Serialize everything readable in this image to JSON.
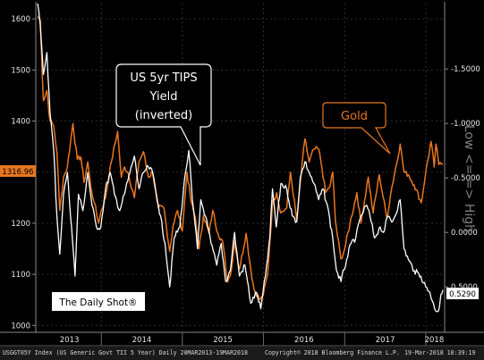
{
  "chart_data": {
    "type": "line",
    "x_range": [
      "2013-03-20",
      "2018-03-19"
    ],
    "left_axis": {
      "ticks": [
        1000,
        1100,
        1200,
        1300,
        1400,
        1500,
        1600
      ],
      "range": [
        990,
        1630
      ]
    },
    "right_axis": {
      "ticks": [
        "-1.5000",
        "-1.0000",
        "-0.5000",
        "0.0000",
        "0.5000"
      ],
      "tick_values": [
        -1.5,
        -1.0,
        -0.5,
        0.0,
        0.5
      ],
      "range": [
        0.9,
        -2.1
      ],
      "label": "Low <= => High"
    },
    "x_tick_labels": [
      "2013",
      "2014",
      "2015",
      "2016",
      "2017",
      "2018"
    ],
    "series": [
      {
        "name": "Gold",
        "color": "#e8761e",
        "axis": "left",
        "points": [
          [
            "2013-03-20",
            1605
          ],
          [
            "2013-04-01",
            1598
          ],
          [
            "2013-04-15",
            1440
          ],
          [
            "2013-05-01",
            1460
          ],
          [
            "2013-05-15",
            1400
          ],
          [
            "2013-06-01",
            1390
          ],
          [
            "2013-06-15",
            1340
          ],
          [
            "2013-06-28",
            1225
          ],
          [
            "2013-07-15",
            1290
          ],
          [
            "2013-08-01",
            1310
          ],
          [
            "2013-08-26",
            1395
          ],
          [
            "2013-09-15",
            1325
          ],
          [
            "2013-10-01",
            1330
          ],
          [
            "2013-10-15",
            1280
          ],
          [
            "2013-11-01",
            1320
          ],
          [
            "2013-11-15",
            1270
          ],
          [
            "2013-12-01",
            1240
          ],
          [
            "2013-12-20",
            1200
          ],
          [
            "2014-01-01",
            1225
          ],
          [
            "2014-01-20",
            1250
          ],
          [
            "2014-02-15",
            1320
          ],
          [
            "2014-03-15",
            1380
          ],
          [
            "2014-04-01",
            1290
          ],
          [
            "2014-04-15",
            1310
          ],
          [
            "2014-05-01",
            1300
          ],
          [
            "2014-05-30",
            1250
          ],
          [
            "2014-06-20",
            1320
          ],
          [
            "2014-07-10",
            1340
          ],
          [
            "2014-08-01",
            1290
          ],
          [
            "2014-08-20",
            1300
          ],
          [
            "2014-09-15",
            1230
          ],
          [
            "2014-10-10",
            1230
          ],
          [
            "2014-11-05",
            1145
          ],
          [
            "2014-11-20",
            1195
          ],
          [
            "2014-12-10",
            1225
          ],
          [
            "2015-01-01",
            1185
          ],
          [
            "2015-01-22",
            1300
          ],
          [
            "2015-02-10",
            1240
          ],
          [
            "2015-03-01",
            1210
          ],
          [
            "2015-03-17",
            1150
          ],
          [
            "2015-04-06",
            1215
          ],
          [
            "2015-05-01",
            1180
          ],
          [
            "2015-05-18",
            1225
          ],
          [
            "2015-06-10",
            1180
          ],
          [
            "2015-07-01",
            1165
          ],
          [
            "2015-07-24",
            1085
          ],
          [
            "2015-08-10",
            1110
          ],
          [
            "2015-08-24",
            1165
          ],
          [
            "2015-09-15",
            1110
          ],
          [
            "2015-10-15",
            1180
          ],
          [
            "2015-11-05",
            1110
          ],
          [
            "2015-11-20",
            1070
          ],
          [
            "2015-12-17",
            1050
          ],
          [
            "2016-01-01",
            1060
          ],
          [
            "2016-01-20",
            1100
          ],
          [
            "2016-02-11",
            1240
          ],
          [
            "2016-03-01",
            1260
          ],
          [
            "2016-03-20",
            1220
          ],
          [
            "2016-04-15",
            1230
          ],
          [
            "2016-05-02",
            1300
          ],
          [
            "2016-05-30",
            1205
          ],
          [
            "2016-06-24",
            1320
          ],
          [
            "2016-07-06",
            1365
          ],
          [
            "2016-07-25",
            1320
          ],
          [
            "2016-08-15",
            1345
          ],
          [
            "2016-09-06",
            1345
          ],
          [
            "2016-09-20",
            1310
          ],
          [
            "2016-10-07",
            1260
          ],
          [
            "2016-10-25",
            1270
          ],
          [
            "2016-11-08",
            1300
          ],
          [
            "2016-11-20",
            1205
          ],
          [
            "2016-12-15",
            1130
          ],
          [
            "2017-01-01",
            1150
          ],
          [
            "2017-01-25",
            1200
          ],
          [
            "2017-02-25",
            1260
          ],
          [
            "2017-03-15",
            1200
          ],
          [
            "2017-04-17",
            1290
          ],
          [
            "2017-05-09",
            1220
          ],
          [
            "2017-06-06",
            1295
          ],
          [
            "2017-07-10",
            1210
          ],
          [
            "2017-08-01",
            1270
          ],
          [
            "2017-09-08",
            1355
          ],
          [
            "2017-09-25",
            1300
          ],
          [
            "2017-10-15",
            1295
          ],
          [
            "2017-11-10",
            1275
          ],
          [
            "2017-12-12",
            1240
          ],
          [
            "2018-01-01",
            1300
          ],
          [
            "2018-01-25",
            1360
          ],
          [
            "2018-02-08",
            1310
          ],
          [
            "2018-02-16",
            1355
          ],
          [
            "2018-03-01",
            1315
          ],
          [
            "2018-03-19",
            1317
          ]
        ],
        "last_value": "1316.96"
      },
      {
        "name": "US 5yr TIPS Yield (inverted)",
        "color": "#ffffff",
        "axis": "right",
        "points": [
          [
            "2013-03-20",
            -2.1
          ],
          [
            "2013-04-01",
            -1.9
          ],
          [
            "2013-04-15",
            -1.45
          ],
          [
            "2013-05-01",
            -1.65
          ],
          [
            "2013-05-15",
            -1.1
          ],
          [
            "2013-06-01",
            -0.75
          ],
          [
            "2013-06-15",
            -0.15
          ],
          [
            "2013-06-28",
            0.2
          ],
          [
            "2013-07-15",
            -0.35
          ],
          [
            "2013-08-01",
            -0.55
          ],
          [
            "2013-08-20",
            -0.05
          ],
          [
            "2013-09-05",
            0.4
          ],
          [
            "2013-09-20",
            -0.35
          ],
          [
            "2013-10-10",
            -0.2
          ],
          [
            "2013-11-01",
            -0.55
          ],
          [
            "2013-11-20",
            -0.25
          ],
          [
            "2013-12-10",
            -0.05
          ],
          [
            "2013-12-30",
            -0.05
          ],
          [
            "2014-01-20",
            -0.4
          ],
          [
            "2014-02-10",
            -0.55
          ],
          [
            "2014-03-01",
            -0.35
          ],
          [
            "2014-03-25",
            -0.2
          ],
          [
            "2014-04-15",
            -0.35
          ],
          [
            "2014-05-10",
            -0.55
          ],
          [
            "2014-05-30",
            -0.7
          ],
          [
            "2014-06-20",
            -0.4
          ],
          [
            "2014-07-10",
            -0.55
          ],
          [
            "2014-08-01",
            -0.6
          ],
          [
            "2014-08-20",
            -0.55
          ],
          [
            "2014-09-15",
            -0.25
          ],
          [
            "2014-10-15",
            0.1
          ],
          [
            "2014-11-05",
            0.5
          ],
          [
            "2014-11-25",
            0.05
          ],
          [
            "2014-12-20",
            -0.05
          ],
          [
            "2015-01-15",
            -0.55
          ],
          [
            "2015-01-30",
            -0.75
          ],
          [
            "2015-02-15",
            -0.3
          ],
          [
            "2015-03-10",
            0.15
          ],
          [
            "2015-03-25",
            -0.3
          ],
          [
            "2015-04-15",
            -0.15
          ],
          [
            "2015-05-10",
            0.1
          ],
          [
            "2015-06-05",
            0.3
          ],
          [
            "2015-06-25",
            0.1
          ],
          [
            "2015-07-15",
            0.45
          ],
          [
            "2015-08-05",
            0.35
          ],
          [
            "2015-08-24",
            0.0
          ],
          [
            "2015-09-15",
            0.4
          ],
          [
            "2015-10-10",
            0.3
          ],
          [
            "2015-11-05",
            0.65
          ],
          [
            "2015-12-01",
            0.55
          ],
          [
            "2015-12-20",
            0.7
          ],
          [
            "2016-01-10",
            0.4
          ],
          [
            "2016-01-30",
            0.05
          ],
          [
            "2016-02-11",
            -0.4
          ],
          [
            "2016-02-28",
            -0.05
          ],
          [
            "2016-03-20",
            -0.45
          ],
          [
            "2016-04-15",
            -0.4
          ],
          [
            "2016-05-10",
            -0.15
          ],
          [
            "2016-05-30",
            -0.1
          ],
          [
            "2016-06-15",
            -0.5
          ],
          [
            "2016-07-06",
            -0.65
          ],
          [
            "2016-07-25",
            -0.55
          ],
          [
            "2016-08-15",
            -0.45
          ],
          [
            "2016-09-06",
            -0.3
          ],
          [
            "2016-09-25",
            -0.4
          ],
          [
            "2016-10-15",
            -0.25
          ],
          [
            "2016-11-08",
            0.05
          ],
          [
            "2016-11-25",
            0.35
          ],
          [
            "2016-12-15",
            0.45
          ],
          [
            "2017-01-10",
            0.25
          ],
          [
            "2017-01-30",
            0.1
          ],
          [
            "2017-02-20",
            0.05
          ],
          [
            "2017-03-15",
            -0.15
          ],
          [
            "2017-04-10",
            -0.25
          ],
          [
            "2017-04-25",
            -0.15
          ],
          [
            "2017-05-15",
            0.05
          ],
          [
            "2017-06-10",
            -0.05
          ],
          [
            "2017-06-25",
            0.0
          ],
          [
            "2017-07-15",
            -0.15
          ],
          [
            "2017-08-05",
            -0.1
          ],
          [
            "2017-09-08",
            -0.3
          ],
          [
            "2017-09-25",
            0.15
          ],
          [
            "2017-10-15",
            0.25
          ],
          [
            "2017-11-10",
            0.35
          ],
          [
            "2017-12-10",
            0.4
          ],
          [
            "2018-01-01",
            0.5
          ],
          [
            "2018-01-20",
            0.55
          ],
          [
            "2018-02-10",
            0.7
          ],
          [
            "2018-02-28",
            0.72
          ],
          [
            "2018-03-10",
            0.57
          ],
          [
            "2018-03-19",
            0.529
          ]
        ],
        "last_value": "0.5290"
      }
    ]
  },
  "annotations": {
    "tips_label_lines": [
      "US 5yr TIPS",
      "Yield",
      "(inverted)"
    ],
    "gold_label": "Gold",
    "watermark": "The Daily Shot®"
  },
  "footer": {
    "index": "USGGT05Y Index (US Generic Govt TII 5 Year) Daily 20MAR2013-19MAR2018",
    "copyright": "Copyright© 2018 Bloomberg Finance L.P.",
    "timestamp": "19-Mar-2018 18:39:19"
  },
  "colors": {
    "gold": "#e8761e",
    "tips": "#ffffff",
    "background": "#000000"
  }
}
